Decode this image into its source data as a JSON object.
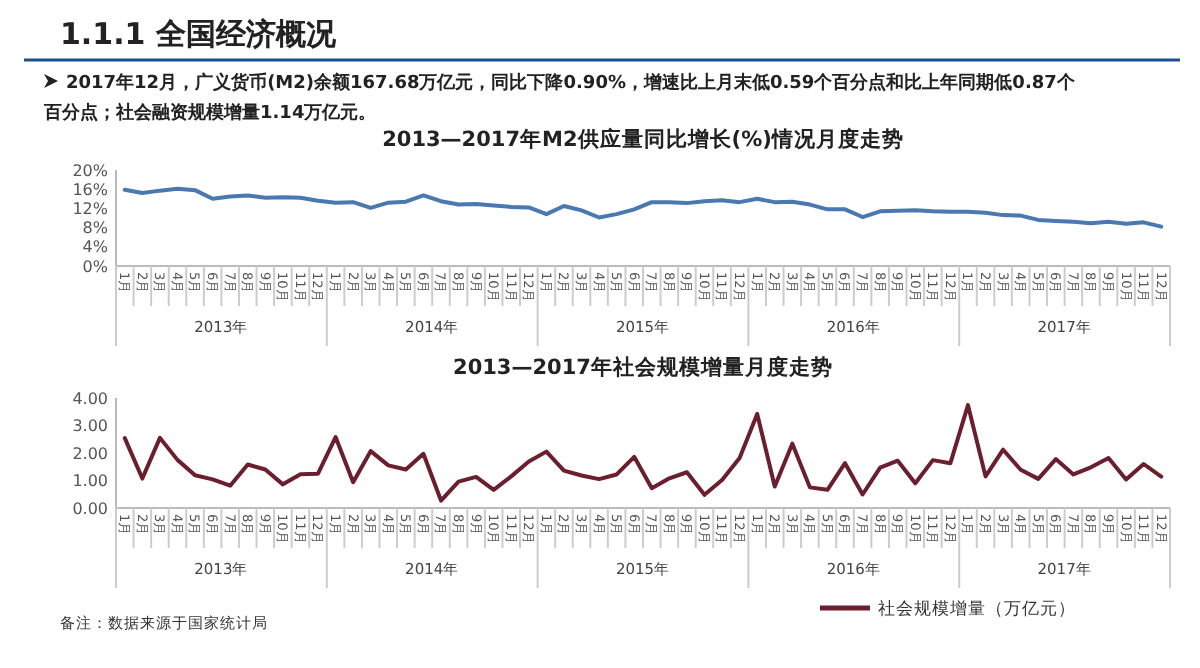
{
  "chart_data": [
    {
      "type": "other",
      "title": "1.1.1 全国经济概况",
      "annotations": [
        "2017年12月，广义货币(M2)余额167.68万亿元，同比下降0.90%，增速比上月末低0.59个百分点和比上年同期低0.87个",
        "百分点；社会融资规模增量1.14万亿元。"
      ]
    },
    {
      "type": "line",
      "title": "2013—2017年M2供应量同比增长(%)情况月度走势",
      "categories": [
        "1月",
        "2月",
        "3月",
        "4月",
        "5月",
        "6月",
        "7月",
        "8月",
        "9月",
        "10月",
        "11月",
        "12月",
        "1月",
        "2月",
        "3月",
        "4月",
        "5月",
        "6月",
        "7月",
        "8月",
        "9月",
        "10月",
        "11月",
        "12月",
        "1月",
        "2月",
        "3月",
        "4月",
        "5月",
        "6月",
        "7月",
        "8月",
        "9月",
        "10月",
        "11月",
        "12月",
        "1月",
        "2月",
        "3月",
        "4月",
        "5月",
        "6月",
        "7月",
        "8月",
        "9月",
        "10月",
        "11月",
        "12月",
        "1月",
        "2月",
        "3月",
        "4月",
        "5月",
        "6月",
        "7月",
        "8月",
        "9月",
        "10月",
        "11月",
        "12月"
      ],
      "series": [
        {
          "color": "#4a78b0",
          "values": [
            15.9,
            15.2,
            15.7,
            16.1,
            15.8,
            14.0,
            14.5,
            14.7,
            14.2,
            14.3,
            14.2,
            13.6,
            13.2,
            13.3,
            12.1,
            13.2,
            13.4,
            14.7,
            13.5,
            12.8,
            12.9,
            12.6,
            12.3,
            12.2,
            10.8,
            12.5,
            11.6,
            10.1,
            10.8,
            11.8,
            13.3,
            13.3,
            13.1,
            13.5,
            13.7,
            13.3,
            14.0,
            13.3,
            13.4,
            12.8,
            11.8,
            11.8,
            10.2,
            11.4,
            11.5,
            11.6,
            11.4,
            11.3,
            11.3,
            11.1,
            10.6,
            10.5,
            9.6,
            9.4,
            9.2,
            8.9,
            9.2,
            8.8,
            9.1,
            8.2
          ]
        }
      ],
      "ylim": [
        0,
        20
      ],
      "yticks": [
        {
          "value": 0,
          "label": "0%"
        },
        {
          "value": 4,
          "label": "4%"
        },
        {
          "value": 8,
          "label": "8%"
        },
        {
          "value": 12,
          "label": "12%"
        },
        {
          "value": 16,
          "label": "16%"
        },
        {
          "value": 20,
          "label": "20%"
        }
      ],
      "annotations": [
        "2013年",
        "2014年",
        "2015年",
        "2016年",
        "2017年"
      ],
      "grid": false,
      "legend": false
    },
    {
      "type": "line",
      "title": "2013—2017年社会规模增量月度走势",
      "categories": [
        "1月",
        "2月",
        "3月",
        "4月",
        "5月",
        "6月",
        "7月",
        "8月",
        "9月",
        "10月",
        "11月",
        "12月",
        "1月",
        "2月",
        "3月",
        "4月",
        "5月",
        "6月",
        "7月",
        "8月",
        "9月",
        "10月",
        "11月",
        "12月",
        "1月",
        "2月",
        "3月",
        "4月",
        "5月",
        "6月",
        "7月",
        "8月",
        "9月",
        "10月",
        "11月",
        "12月",
        "1月",
        "2月",
        "3月",
        "4月",
        "5月",
        "6月",
        "7月",
        "8月",
        "9月",
        "10月",
        "11月",
        "12月",
        "1月",
        "2月",
        "3月",
        "4月",
        "5月",
        "6月",
        "7月",
        "8月",
        "9月",
        "10月",
        "11月",
        "12月"
      ],
      "series": [
        {
          "name": "社会规模增量（万亿元）",
          "color": "#6b1f2e",
          "values": [
            2.54,
            1.07,
            2.55,
            1.75,
            1.19,
            1.04,
            0.81,
            1.58,
            1.4,
            0.86,
            1.23,
            1.25,
            2.58,
            0.94,
            2.07,
            1.55,
            1.4,
            1.97,
            0.27,
            0.96,
            1.13,
            0.66,
            1.15,
            1.69,
            2.05,
            1.36,
            1.18,
            1.05,
            1.22,
            1.86,
            0.72,
            1.08,
            1.3,
            0.48,
            1.02,
            1.82,
            3.42,
            0.78,
            2.34,
            0.75,
            0.66,
            1.63,
            0.49,
            1.47,
            1.72,
            0.9,
            1.74,
            1.63,
            3.74,
            1.15,
            2.12,
            1.39,
            1.06,
            1.78,
            1.22,
            1.48,
            1.82,
            1.04,
            1.6,
            1.14
          ]
        }
      ],
      "ylim": [
        0,
        4
      ],
      "yticks": [
        {
          "value": 0,
          "label": "0.00"
        },
        {
          "value": 1,
          "label": "1.00"
        },
        {
          "value": 2,
          "label": "2.00"
        },
        {
          "value": 3,
          "label": "3.00"
        },
        {
          "value": 4,
          "label": "4.00"
        }
      ],
      "annotations": [
        "2013年",
        "2014年",
        "2015年",
        "2016年",
        "2017年"
      ],
      "grid": false,
      "legend": "bottom"
    },
    {
      "type": "other",
      "annotations": [
        "备注：数据来源于国家统计局"
      ]
    }
  ]
}
